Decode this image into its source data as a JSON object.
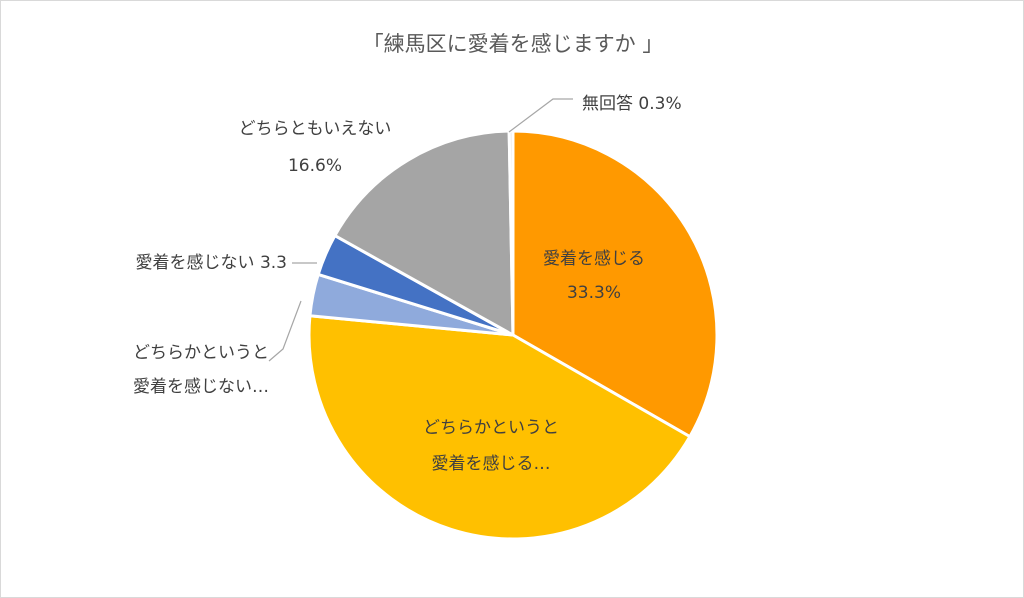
{
  "chart_data": {
    "type": "pie",
    "title": "「練馬区に愛着を感じますか 」",
    "slices": [
      {
        "name": "愛着を感じる",
        "value": 33.3,
        "color": "#FF9900",
        "label_lines": [
          "愛着を感じる",
          "33.3%"
        ]
      },
      {
        "name": "どちらかというと愛着を感じる",
        "value": 43.2,
        "color": "#FFC000",
        "label_lines": [
          "どちらかというと",
          "愛着を感じる…"
        ]
      },
      {
        "name": "どちらかというと愛着を感じない",
        "value": 3.3,
        "color": "#8FAADC",
        "label_lines": [
          "どちらかというと",
          "愛着を感じない…"
        ]
      },
      {
        "name": "愛着を感じない",
        "value": 3.3,
        "color": "#4472C4",
        "label_lines": [
          "愛着を感じない 3.3"
        ]
      },
      {
        "name": "どちらともいえない",
        "value": 16.6,
        "color": "#A5A5A5",
        "label_lines": [
          "どちらともいえない",
          "16.6%"
        ]
      },
      {
        "name": "無回答",
        "value": 0.3,
        "color": "#E7E6E6",
        "label_lines": [
          "無回答 0.3%"
        ]
      }
    ]
  }
}
